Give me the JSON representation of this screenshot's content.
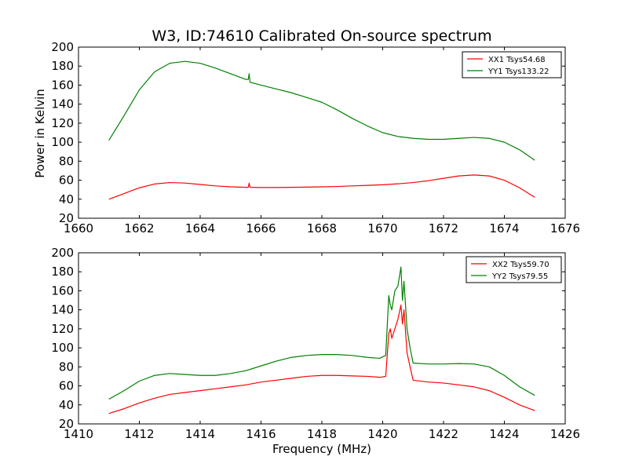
{
  "figure": {
    "title": "W3, ID:74610 Calibrated On-source spectrum",
    "ylabel": "Power in Kelvin",
    "xlabel": "Frequency (MHz)"
  },
  "colors": {
    "red": "#ff0000",
    "green": "#008000"
  },
  "chart_data": [
    {
      "type": "line",
      "title": "W3, ID:74610 Calibrated On-source spectrum",
      "ylabel": "Power in Kelvin",
      "xlabel": "",
      "xlim": [
        1660,
        1676
      ],
      "ylim": [
        20,
        200
      ],
      "xticks": [
        1660,
        1662,
        1664,
        1666,
        1668,
        1670,
        1672,
        1674,
        1676
      ],
      "yticks": [
        20,
        40,
        60,
        80,
        100,
        120,
        140,
        160,
        180,
        200
      ],
      "legend_position": "top-right",
      "grid": false,
      "series": [
        {
          "name": "XX1 Tsys54.68",
          "color": "#ff0000",
          "x": [
            1661.0,
            1661.5,
            1662.0,
            1662.5,
            1663.0,
            1663.5,
            1664.0,
            1664.5,
            1665.0,
            1665.5,
            1665.58,
            1665.61,
            1665.64,
            1666.0,
            1666.5,
            1667.0,
            1667.5,
            1668.0,
            1668.5,
            1669.0,
            1669.5,
            1670.0,
            1670.5,
            1671.0,
            1671.5,
            1672.0,
            1672.5,
            1673.0,
            1673.5,
            1674.0,
            1674.5,
            1675.0
          ],
          "y": [
            40,
            46,
            52,
            56,
            57.5,
            57,
            55.5,
            54,
            53,
            52.5,
            52.5,
            57,
            52.5,
            52.3,
            52.3,
            52.5,
            52.7,
            53,
            53.4,
            54,
            54.6,
            55.2,
            56.2,
            57.5,
            59.5,
            62,
            64.5,
            65.5,
            64.5,
            60,
            52,
            42
          ]
        },
        {
          "name": "YY1 Tsys133.22",
          "color": "#008000",
          "x": [
            1661.0,
            1661.5,
            1662.0,
            1662.5,
            1663.0,
            1663.5,
            1664.0,
            1664.5,
            1665.0,
            1665.5,
            1665.58,
            1665.61,
            1665.64,
            1666.0,
            1666.5,
            1667.0,
            1667.5,
            1668.0,
            1668.5,
            1669.0,
            1669.5,
            1670.0,
            1670.5,
            1671.0,
            1671.5,
            1672.0,
            1672.5,
            1673.0,
            1673.5,
            1674.0,
            1674.5,
            1675.0
          ],
          "y": [
            102,
            128,
            155,
            174,
            183,
            185,
            183,
            178,
            172,
            166,
            166,
            172,
            163,
            160,
            156,
            152,
            147,
            142,
            134,
            125,
            117,
            110,
            106,
            104,
            103,
            103,
            104,
            105,
            104,
            100,
            92,
            81
          ]
        }
      ]
    },
    {
      "type": "line",
      "title": "",
      "ylabel": "",
      "xlabel": "Frequency (MHz)",
      "xlim": [
        1410,
        1426
      ],
      "ylim": [
        20,
        200
      ],
      "xticks": [
        1410,
        1412,
        1414,
        1416,
        1418,
        1420,
        1422,
        1424,
        1426
      ],
      "yticks": [
        20,
        40,
        60,
        80,
        100,
        120,
        140,
        160,
        180,
        200
      ],
      "legend_position": "top-right",
      "grid": false,
      "series": [
        {
          "name": "XX2 Tsys59.70",
          "color": "#ff0000",
          "x": [
            1411.0,
            1411.5,
            1412.0,
            1412.5,
            1413.0,
            1413.5,
            1414.0,
            1414.5,
            1415.0,
            1415.5,
            1416.0,
            1416.5,
            1417.0,
            1417.5,
            1418.0,
            1418.5,
            1419.0,
            1419.5,
            1419.9,
            1420.1,
            1420.2,
            1420.25,
            1420.3,
            1420.4,
            1420.5,
            1420.6,
            1420.65,
            1420.7,
            1420.8,
            1420.9,
            1421.0,
            1421.5,
            1422.0,
            1422.5,
            1423.0,
            1423.5,
            1424.0,
            1424.5,
            1425.0
          ],
          "y": [
            31,
            36,
            42,
            47,
            51,
            53,
            55,
            57,
            59,
            61,
            64,
            66,
            68,
            70,
            71,
            71,
            70.5,
            70,
            69,
            70,
            115,
            120,
            110,
            120,
            130,
            145,
            125,
            140,
            95,
            80,
            66,
            64,
            63,
            61,
            59,
            55,
            48,
            40,
            34
          ]
        },
        {
          "name": "YY2 Tsys79.55",
          "color": "#008000",
          "x": [
            1411.0,
            1411.5,
            1412.0,
            1412.5,
            1413.0,
            1413.5,
            1414.0,
            1414.5,
            1415.0,
            1415.5,
            1416.0,
            1416.5,
            1417.0,
            1417.5,
            1418.0,
            1418.5,
            1419.0,
            1419.5,
            1419.9,
            1420.1,
            1420.2,
            1420.25,
            1420.3,
            1420.4,
            1420.5,
            1420.6,
            1420.65,
            1420.7,
            1420.8,
            1420.9,
            1421.0,
            1421.5,
            1422.0,
            1422.5,
            1423.0,
            1423.5,
            1424.0,
            1424.5,
            1425.0
          ],
          "y": [
            46,
            55,
            65,
            71,
            73,
            72,
            71,
            71,
            73,
            76,
            81,
            86,
            90,
            92,
            93,
            93,
            92,
            90,
            89,
            92,
            155,
            145,
            140,
            160,
            165,
            185,
            150,
            170,
            120,
            100,
            84,
            83,
            83,
            83.5,
            83,
            80,
            71,
            59,
            50
          ]
        }
      ]
    }
  ]
}
